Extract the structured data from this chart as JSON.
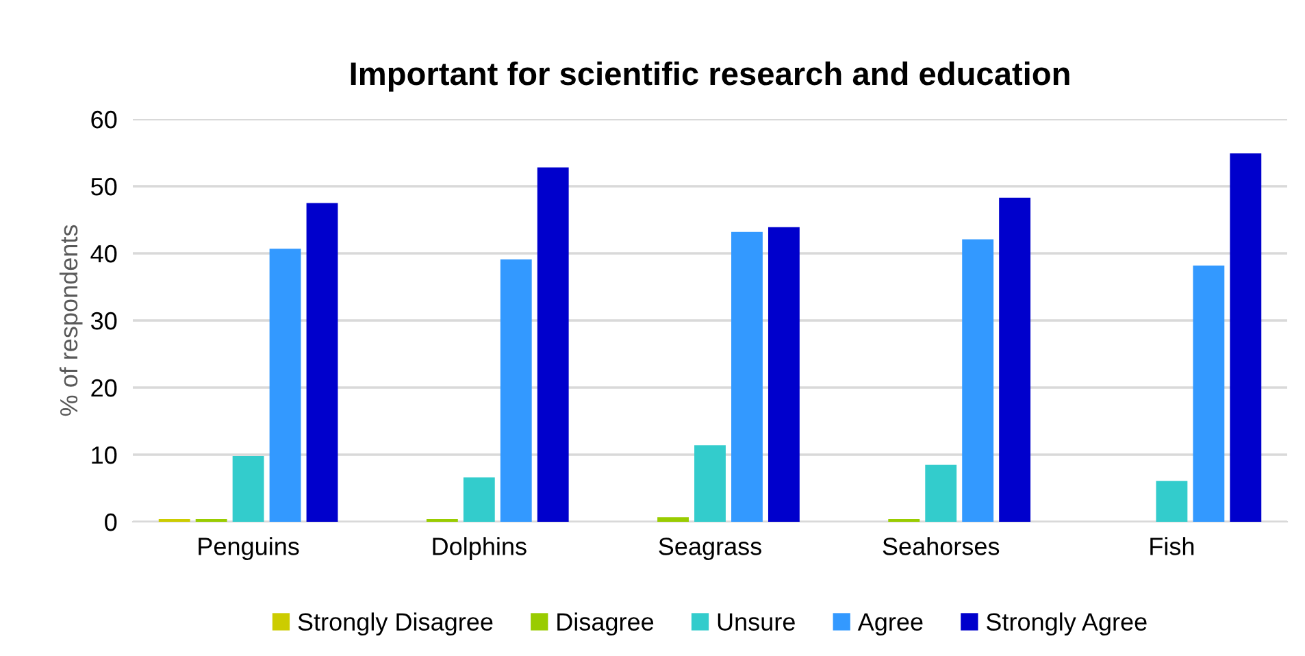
{
  "chart_data": {
    "type": "bar",
    "title": "Important for scientific research and education",
    "ylabel": "% of respondents",
    "categories": [
      "Penguins",
      "Dolphins",
      "Seagrass",
      "Seahorses",
      "Fish"
    ],
    "series": [
      {
        "name": "Strongly Disagree",
        "color": "#cccc00",
        "values": [
          0.4,
          0,
          0,
          0,
          0
        ]
      },
      {
        "name": "Disagree",
        "color": "#99cc00",
        "values": [
          0.4,
          0.4,
          0.7,
          0.4,
          0
        ]
      },
      {
        "name": "Unsure",
        "color": "#33cccc",
        "values": [
          9.8,
          6.6,
          11.4,
          8.5,
          6.1
        ]
      },
      {
        "name": "Agree",
        "color": "#3399ff",
        "values": [
          40.7,
          39.1,
          43.2,
          42.1,
          38.2
        ]
      },
      {
        "name": "Strongly Agree",
        "color": "#0000cc",
        "values": [
          47.5,
          52.8,
          43.9,
          48.3,
          54.9
        ]
      }
    ],
    "ylim": [
      0,
      60
    ],
    "yticks": [
      0,
      10,
      20,
      30,
      40,
      50,
      60
    ],
    "grid": "y",
    "legend": "bottom"
  }
}
